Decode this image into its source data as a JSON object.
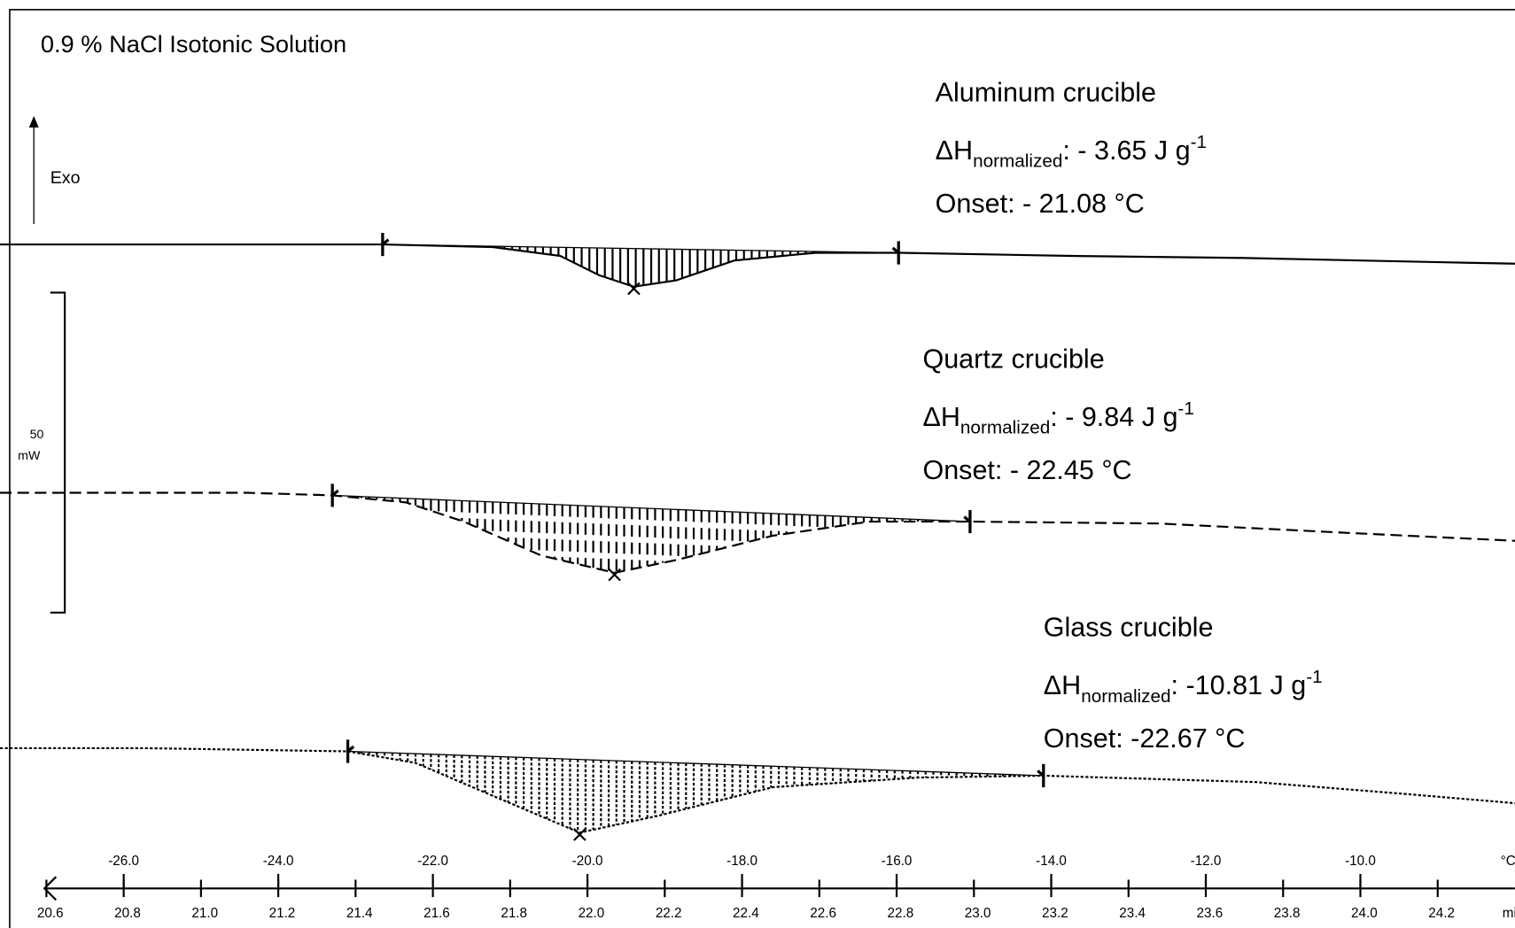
{
  "chart_data": {
    "type": "line",
    "title": "0.9 % NaCl Isotonic Solution",
    "exo_label": "Exo",
    "scale_bar": {
      "value": 50,
      "unit": "mW"
    },
    "x_unit": "min",
    "x2_unit": "°C",
    "xlim": [
      20.48,
      24.4
    ],
    "x2lim": [
      -27.6,
      -8
    ],
    "ylim": [
      0,
      145
    ],
    "xticks": [
      {
        "value": 20.6,
        "label": "20.6"
      },
      {
        "value": 20.8,
        "label": "20.8"
      },
      {
        "value": 21.0,
        "label": "21.0"
      },
      {
        "value": 21.2,
        "label": "21.2"
      },
      {
        "value": 21.4,
        "label": "21.4"
      },
      {
        "value": 21.6,
        "label": "21.6"
      },
      {
        "value": 21.8,
        "label": "21.8"
      },
      {
        "value": 22.0,
        "label": "22.0"
      },
      {
        "value": 22.2,
        "label": "22.2"
      },
      {
        "value": 22.4,
        "label": "22.4"
      },
      {
        "value": 22.6,
        "label": "22.6"
      },
      {
        "value": 22.8,
        "label": "22.8"
      },
      {
        "value": 23.0,
        "label": "23.0"
      },
      {
        "value": 23.2,
        "label": "23.2"
      },
      {
        "value": 23.4,
        "label": "23.4"
      },
      {
        "value": 23.6,
        "label": "23.6"
      },
      {
        "value": 23.8,
        "label": "23.8"
      },
      {
        "value": 24.0,
        "label": "24.0"
      },
      {
        "value": 24.2,
        "label": "24.2"
      }
    ],
    "x2ticks": [
      {
        "value": -26,
        "label": "-26.0"
      },
      {
        "value": -24,
        "label": "-24.0"
      },
      {
        "value": -22,
        "label": "-22.0"
      },
      {
        "value": -20,
        "label": "-20.0"
      },
      {
        "value": -18,
        "label": "-18.0"
      },
      {
        "value": -16,
        "label": "-16.0"
      },
      {
        "value": -14,
        "label": "-14.0"
      },
      {
        "value": -12,
        "label": "-12.0"
      },
      {
        "value": -10,
        "label": "-10.0"
      }
    ],
    "series": [
      {
        "name": "Aluminum crucible",
        "color": "#000000",
        "line_style": "solid",
        "x": [
          20.48,
          21.47,
          21.755,
          21.93,
          22.03,
          22.12,
          22.23,
          22.38,
          22.59,
          22.805,
          23.27,
          23.69,
          24.23,
          24.4
        ],
        "values": [
          106.8,
          106.8,
          106.4,
          105.0,
          102.0,
          100.2,
          101.2,
          104.3,
          105.5,
          105.5,
          105.0,
          104.7,
          104.0,
          103.8
        ],
        "integration": [
          21.47,
          22.805
        ],
        "peak": 22.12,
        "delta_h": {
          "symbol": "ΔH",
          "subscript": "normalized",
          "text": ": - 3.65 J g",
          "superscript": "-1"
        },
        "onset": "Onset: - 21.08 °C"
      },
      {
        "name": "Quartz crucible",
        "color": "#000000",
        "line_style": "dashed",
        "x": [
          20.48,
          21.12,
          21.34,
          21.53,
          21.68,
          21.88,
          22.07,
          22.23,
          22.48,
          22.73,
          22.99,
          23.48,
          23.98,
          24.4
        ],
        "values": [
          68.0,
          68.0,
          67.6,
          66.5,
          63.5,
          58.2,
          55.5,
          57.5,
          61.3,
          63.5,
          63.5,
          63.2,
          61.7,
          60.5
        ],
        "integration": [
          21.34,
          22.99
        ],
        "peak": 22.07,
        "delta_h": {
          "symbol": "ΔH",
          "subscript": "normalized",
          "text": ": - 9.84 J g",
          "superscript": "-1"
        },
        "onset": "Onset: - 22.45 °C"
      },
      {
        "name": "Glass crucible",
        "color": "#000000",
        "line_style": "dotted",
        "x": [
          20.48,
          20.855,
          21.38,
          21.555,
          21.73,
          21.98,
          22.18,
          22.48,
          22.855,
          23.18,
          23.73,
          24.105,
          24.4
        ],
        "values": [
          28.1,
          28.1,
          27.6,
          25.8,
          21.3,
          14.9,
          17.5,
          22.0,
          23.5,
          23.8,
          22.8,
          21.0,
          19.5
        ],
        "integration": [
          21.38,
          23.18
        ],
        "peak": 21.98,
        "delta_h": {
          "symbol": "ΔH",
          "subscript": "normalized",
          "text": ": -10.81 J g",
          "superscript": "-1"
        },
        "onset": "Onset: -22.67 °C"
      }
    ]
  }
}
